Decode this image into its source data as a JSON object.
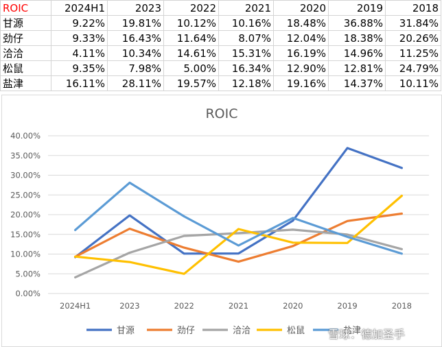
{
  "table": {
    "corner": "ROIC",
    "years": [
      "2024H1",
      "2023",
      "2022",
      "2021",
      "2020",
      "2019",
      "2018"
    ],
    "rows": [
      {
        "name": "甘源",
        "cells": [
          "9.22%",
          "19.81%",
          "10.12%",
          "10.16%",
          "18.48%",
          "36.88%",
          "31.84%"
        ]
      },
      {
        "name": "劲仔",
        "cells": [
          "9.33%",
          "16.43%",
          "11.64%",
          "8.07%",
          "12.04%",
          "18.38%",
          "20.26%"
        ]
      },
      {
        "name": "洽洽",
        "cells": [
          "4.11%",
          "10.34%",
          "14.61%",
          "15.31%",
          "16.19%",
          "14.96%",
          "11.25%"
        ]
      },
      {
        "name": "松鼠",
        "cells": [
          "9.35%",
          "7.98%",
          "5.00%",
          "16.34%",
          "12.90%",
          "12.81%",
          "24.79%"
        ]
      },
      {
        "name": "盐津",
        "cells": [
          "16.11%",
          "28.11%",
          "19.57%",
          "12.18%",
          "19.16%",
          "14.37%",
          "10.11%"
        ]
      }
    ]
  },
  "chart_data": {
    "type": "line",
    "title": "ROIC",
    "categories": [
      "2024H1",
      "2023",
      "2022",
      "2021",
      "2020",
      "2019",
      "2018"
    ],
    "ylim": [
      0,
      40
    ],
    "yticks": [
      "0.00%",
      "5.00%",
      "10.00%",
      "15.00%",
      "20.00%",
      "25.00%",
      "30.00%",
      "35.00%",
      "40.00%"
    ],
    "grid": true,
    "legend_position": "bottom",
    "series": [
      {
        "name": "甘源",
        "color": "#4472c4",
        "values": [
          9.22,
          19.81,
          10.12,
          10.16,
          18.48,
          36.88,
          31.84
        ]
      },
      {
        "name": "劲仔",
        "color": "#ed7d31",
        "values": [
          9.33,
          16.43,
          11.64,
          8.07,
          12.04,
          18.38,
          20.26
        ]
      },
      {
        "name": "洽洽",
        "color": "#a5a5a5",
        "values": [
          4.11,
          10.34,
          14.61,
          15.31,
          16.19,
          14.96,
          11.25
        ]
      },
      {
        "name": "松鼠",
        "color": "#ffc000",
        "values": [
          9.35,
          7.98,
          5.0,
          16.34,
          12.9,
          12.81,
          24.79
        ]
      },
      {
        "name": "盐津",
        "color": "#5b9bd5",
        "values": [
          16.11,
          28.11,
          19.57,
          12.18,
          19.16,
          14.37,
          10.11
        ]
      }
    ]
  },
  "watermark": "雪球：德加圣手"
}
